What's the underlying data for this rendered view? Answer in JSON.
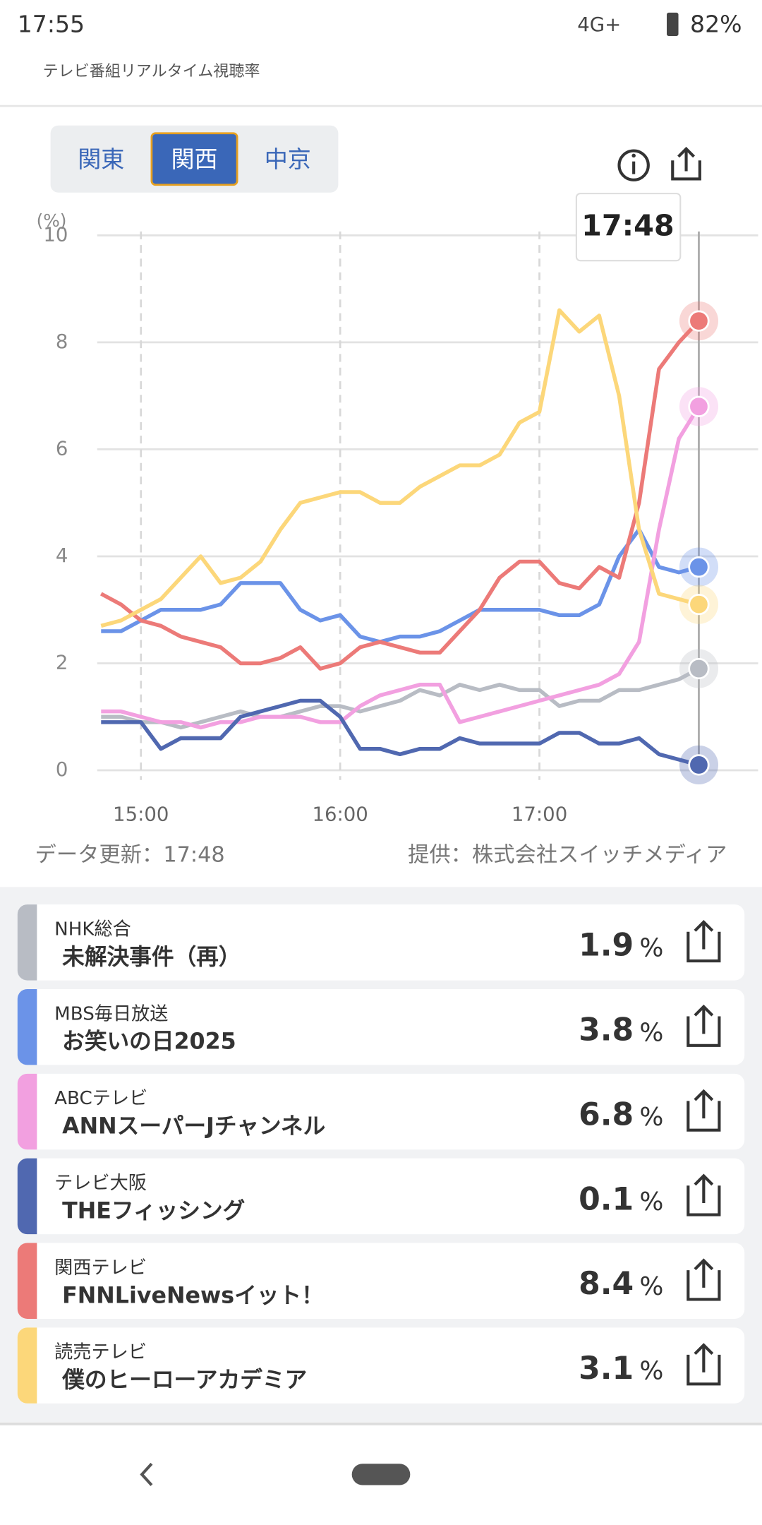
{
  "status_bar": {
    "time": "17:55",
    "network": "4G+",
    "battery": "82%"
  },
  "header": {
    "subtitle": "テレビ番組リアルタイム視聴率"
  },
  "tabs": [
    "関東",
    "関西",
    "中京"
  ],
  "chart_data": {
    "type": "line",
    "y_unit": "(%)",
    "tooltip": "17:48",
    "x": [
      "14:48",
      "14:54",
      "15:00",
      "15:06",
      "15:12",
      "15:18",
      "15:24",
      "15:30",
      "15:36",
      "15:42",
      "15:48",
      "15:54",
      "16:00",
      "16:06",
      "16:12",
      "16:18",
      "16:24",
      "16:30",
      "16:36",
      "16:42",
      "16:48",
      "16:54",
      "17:00",
      "17:06",
      "17:12",
      "17:18",
      "17:24",
      "17:30",
      "17:36",
      "17:42",
      "17:48"
    ],
    "xlim": [
      "14:48",
      "17:48"
    ],
    "xticks": [
      "15:00",
      "16:00",
      "17:00"
    ],
    "ylim": [
      0,
      10
    ],
    "yticks": [
      0,
      2,
      4,
      6,
      8,
      10
    ],
    "grid": true,
    "series": [
      {
        "name": "NHK総合",
        "program": "未解決事件（再）",
        "color": "#b8bcc4",
        "current": 1.9,
        "values": [
          1.0,
          1.0,
          0.9,
          0.9,
          0.8,
          0.9,
          1.0,
          1.1,
          1.0,
          1.0,
          1.1,
          1.2,
          1.2,
          1.1,
          1.2,
          1.3,
          1.5,
          1.4,
          1.6,
          1.5,
          1.6,
          1.5,
          1.5,
          1.2,
          1.3,
          1.3,
          1.5,
          1.5,
          1.6,
          1.7,
          1.9
        ]
      },
      {
        "name": "MBS毎日放送",
        "program": "お笑いの日2025",
        "color": "#6b93e8",
        "current": 3.8,
        "values": [
          2.6,
          2.6,
          2.8,
          3.0,
          3.0,
          3.0,
          3.1,
          3.5,
          3.5,
          3.5,
          3.0,
          2.8,
          2.9,
          2.5,
          2.4,
          2.5,
          2.5,
          2.6,
          2.8,
          3.0,
          3.0,
          3.0,
          3.0,
          2.9,
          2.9,
          3.1,
          4.0,
          4.5,
          3.8,
          3.7,
          3.8
        ]
      },
      {
        "name": "ABCテレビ",
        "program": "ANNスーパーJチャンネル",
        "color": "#f2a0e0",
        "current": 6.8,
        "values": [
          1.1,
          1.1,
          1.0,
          0.9,
          0.9,
          0.8,
          0.9,
          0.9,
          1.0,
          1.0,
          1.0,
          0.9,
          0.9,
          1.2,
          1.4,
          1.5,
          1.6,
          1.6,
          0.9,
          1.0,
          1.1,
          1.2,
          1.3,
          1.4,
          1.5,
          1.6,
          1.8,
          2.4,
          4.5,
          6.2,
          6.8
        ]
      },
      {
        "name": "テレビ大阪",
        "program": "THEフィッシング",
        "color": "#5068b0",
        "current": 0.1,
        "values": [
          0.9,
          0.9,
          0.9,
          0.4,
          0.6,
          0.6,
          0.6,
          1.0,
          1.1,
          1.2,
          1.3,
          1.3,
          1.0,
          0.4,
          0.4,
          0.3,
          0.4,
          0.4,
          0.6,
          0.5,
          0.5,
          0.5,
          0.5,
          0.7,
          0.7,
          0.5,
          0.5,
          0.6,
          0.3,
          0.2,
          0.1
        ]
      },
      {
        "name": "関西テレビ",
        "program": "FNNLiveNewsイット！",
        "color": "#ec7a78",
        "current": 8.4,
        "values": [
          3.3,
          3.1,
          2.8,
          2.7,
          2.5,
          2.4,
          2.3,
          2.0,
          2.0,
          2.1,
          2.3,
          1.9,
          2.0,
          2.3,
          2.4,
          2.3,
          2.2,
          2.2,
          2.6,
          3.0,
          3.6,
          3.9,
          3.9,
          3.5,
          3.4,
          3.8,
          3.6,
          5.0,
          7.5,
          8.0,
          8.4
        ]
      },
      {
        "name": "読売テレビ",
        "program": "僕のヒーローアカデミア",
        "color": "#fcd77a",
        "current": 3.1,
        "values": [
          2.7,
          2.8,
          3.0,
          3.2,
          3.6,
          4.0,
          3.5,
          3.6,
          3.9,
          4.5,
          5.0,
          5.1,
          5.2,
          5.2,
          5.0,
          5.0,
          5.3,
          5.5,
          5.7,
          5.7,
          5.9,
          6.5,
          6.7,
          8.6,
          8.2,
          8.5,
          7.0,
          4.5,
          3.3,
          3.2,
          3.1
        ]
      }
    ]
  },
  "updated": "データ更新：17:48",
  "provider": "提供：株式会社スイッチメディア",
  "unit": "%"
}
